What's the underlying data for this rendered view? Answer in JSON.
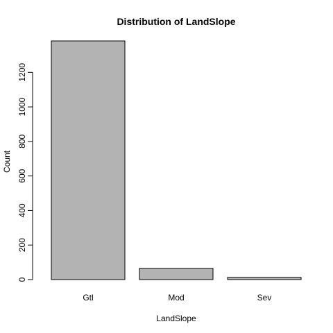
{
  "chart_data": {
    "type": "bar",
    "title": "Distribution of LandSlope",
    "xlabel": "LandSlope",
    "ylabel": "Count",
    "categories": [
      "Gtl",
      "Mod",
      "Sev"
    ],
    "values": [
      1382,
      65,
      13
    ],
    "ylim": [
      0,
      1382
    ],
    "yticks": [
      0,
      200,
      400,
      600,
      800,
      1000,
      1200
    ],
    "bar_color": "#b3b3b3",
    "grid": false,
    "legend": "none"
  }
}
